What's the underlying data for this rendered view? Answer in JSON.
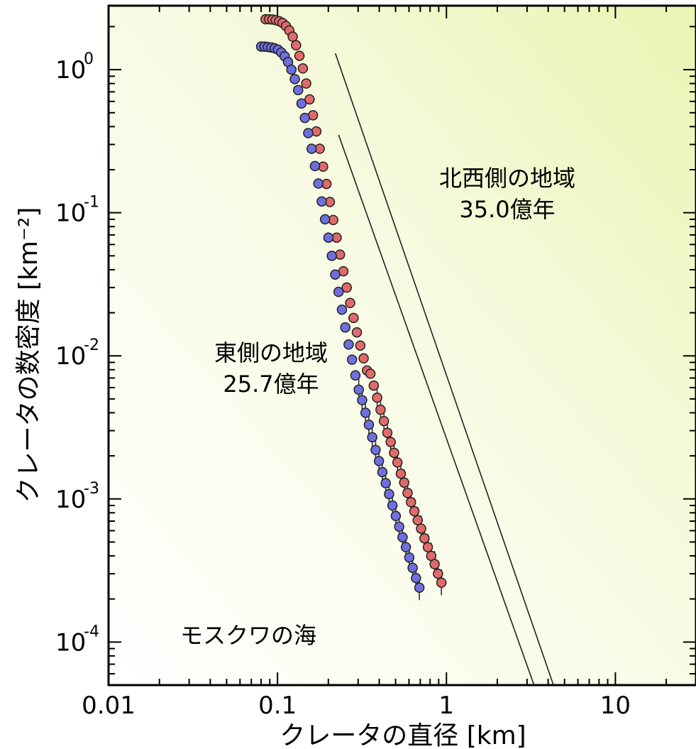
{
  "chart_data": {
    "type": "scatter",
    "title": "",
    "xlabel": "クレータの直径 [km]",
    "ylabel": "クレータの数密度 [km⁻²]",
    "xscale": "log",
    "yscale": "log",
    "xlim": [
      0.01,
      30
    ],
    "ylim": [
      5e-05,
      2.8
    ],
    "x_ticks": [
      {
        "value": 0.01,
        "label": "0.01"
      },
      {
        "value": 0.1,
        "label": "0.1"
      },
      {
        "value": 1,
        "label": "1"
      },
      {
        "value": 10,
        "label": "10"
      }
    ],
    "y_ticks": [
      {
        "value": 1,
        "base": "10",
        "exp": "0"
      },
      {
        "value": 0.1,
        "base": "10",
        "exp": "-1"
      },
      {
        "value": 0.01,
        "base": "10",
        "exp": "-2"
      },
      {
        "value": 0.001,
        "base": "10",
        "exp": "-3"
      },
      {
        "value": 0.0001,
        "base": "10",
        "exp": "-4"
      }
    ],
    "panel_label": "モスクワの海",
    "series": [
      {
        "color": "#e06a6a",
        "label_line1": "北西側の地域",
        "label_line2": "35.0億年",
        "points": [
          [
            0.085,
            2.25
          ],
          [
            0.0891,
            2.25
          ],
          [
            0.0933,
            2.24
          ],
          [
            0.0977,
            2.22
          ],
          [
            0.1023,
            2.18
          ],
          [
            0.1072,
            2.12
          ],
          [
            0.1122,
            2.02
          ],
          [
            0.1175,
            1.88
          ],
          [
            0.123,
            1.7
          ],
          [
            0.1288,
            1.48
          ],
          [
            0.1349,
            1.25
          ],
          [
            0.1413,
            1.02
          ],
          [
            0.1479,
            0.8
          ],
          [
            0.1549,
            0.62
          ],
          [
            0.1622,
            0.48
          ],
          [
            0.1698,
            0.37
          ],
          [
            0.1778,
            0.28
          ],
          [
            0.1862,
            0.21
          ],
          [
            0.195,
            0.159
          ],
          [
            0.2042,
            0.119
          ],
          [
            0.2138,
            0.089
          ],
          [
            0.2239,
            0.067
          ],
          [
            0.2344,
            0.051
          ],
          [
            0.2455,
            0.039
          ],
          [
            0.257,
            0.03
          ],
          [
            0.2692,
            0.0234
          ],
          [
            0.2818,
            0.0184
          ],
          [
            0.2951,
            0.0146
          ],
          [
            0.309,
            0.0118
          ],
          [
            0.3236,
            0.0096
          ],
          [
            0.3388,
            0.0079
          ],
          [
            0.3548,
            0.0075
          ],
          [
            0.3715,
            0.0062
          ],
          [
            0.389,
            0.0051
          ],
          [
            0.4074,
            0.0042
          ],
          [
            0.4266,
            0.0035
          ],
          [
            0.4467,
            0.0029
          ],
          [
            0.4677,
            0.0025
          ],
          [
            0.4898,
            0.0021
          ],
          [
            0.5129,
            0.0018
          ],
          [
            0.537,
            0.0015
          ],
          [
            0.5623,
            0.0013
          ],
          [
            0.5888,
            0.0011
          ],
          [
            0.6166,
            0.00095
          ],
          [
            0.6457,
            0.00082
          ],
          [
            0.6761,
            0.00071
          ],
          [
            0.7079,
            0.00062
          ],
          [
            0.7413,
            0.00053
          ],
          [
            0.7762,
            0.00046
          ],
          [
            0.8128,
            0.0004
          ],
          [
            0.8511,
            0.00035
          ],
          [
            0.8913,
            0.0003
          ],
          [
            0.9333,
            0.00026
          ]
        ],
        "fit_line": [
          [
            0.22,
            1.3
          ],
          [
            4.3,
            5e-05
          ]
        ]
      },
      {
        "color": "#6f6fe0",
        "label_line1": "東側の地域",
        "label_line2": "25.7億年",
        "points": [
          [
            0.08,
            1.45
          ],
          [
            0.0838,
            1.45
          ],
          [
            0.0877,
            1.44
          ],
          [
            0.0918,
            1.43
          ],
          [
            0.0961,
            1.41
          ],
          [
            0.1006,
            1.38
          ],
          [
            0.1053,
            1.32
          ],
          [
            0.1103,
            1.24
          ],
          [
            0.1155,
            1.13
          ],
          [
            0.1209,
            1.0
          ],
          [
            0.1266,
            0.86
          ],
          [
            0.1325,
            0.72
          ],
          [
            0.1387,
            0.58
          ],
          [
            0.1452,
            0.46
          ],
          [
            0.152,
            0.36
          ],
          [
            0.1592,
            0.28
          ],
          [
            0.1666,
            0.212
          ],
          [
            0.1745,
            0.16
          ],
          [
            0.1827,
            0.12
          ],
          [
            0.1912,
            0.09
          ],
          [
            0.2002,
            0.067
          ],
          [
            0.2096,
            0.05
          ],
          [
            0.2195,
            0.037
          ],
          [
            0.2298,
            0.028
          ],
          [
            0.2406,
            0.021
          ],
          [
            0.2519,
            0.0158
          ],
          [
            0.2637,
            0.012
          ],
          [
            0.2761,
            0.0094
          ],
          [
            0.2891,
            0.0073
          ],
          [
            0.3027,
            0.0058
          ],
          [
            0.3169,
            0.0049
          ],
          [
            0.3318,
            0.004
          ],
          [
            0.3474,
            0.0033
          ],
          [
            0.3637,
            0.0027
          ],
          [
            0.3808,
            0.0022
          ],
          [
            0.3987,
            0.00184
          ],
          [
            0.4174,
            0.00154
          ],
          [
            0.437,
            0.00129
          ],
          [
            0.4575,
            0.00108
          ],
          [
            0.479,
            0.0009
          ],
          [
            0.5015,
            0.00076
          ],
          [
            0.5251,
            0.00064
          ],
          [
            0.5498,
            0.00054
          ],
          [
            0.5756,
            0.00046
          ],
          [
            0.6026,
            0.00039
          ],
          [
            0.6309,
            0.00033
          ],
          [
            0.6605,
            0.00028
          ],
          [
            0.6915,
            0.00024
          ]
        ],
        "fit_line": [
          [
            0.23,
            0.35
          ],
          [
            3.3,
            5e-05
          ]
        ]
      }
    ]
  }
}
